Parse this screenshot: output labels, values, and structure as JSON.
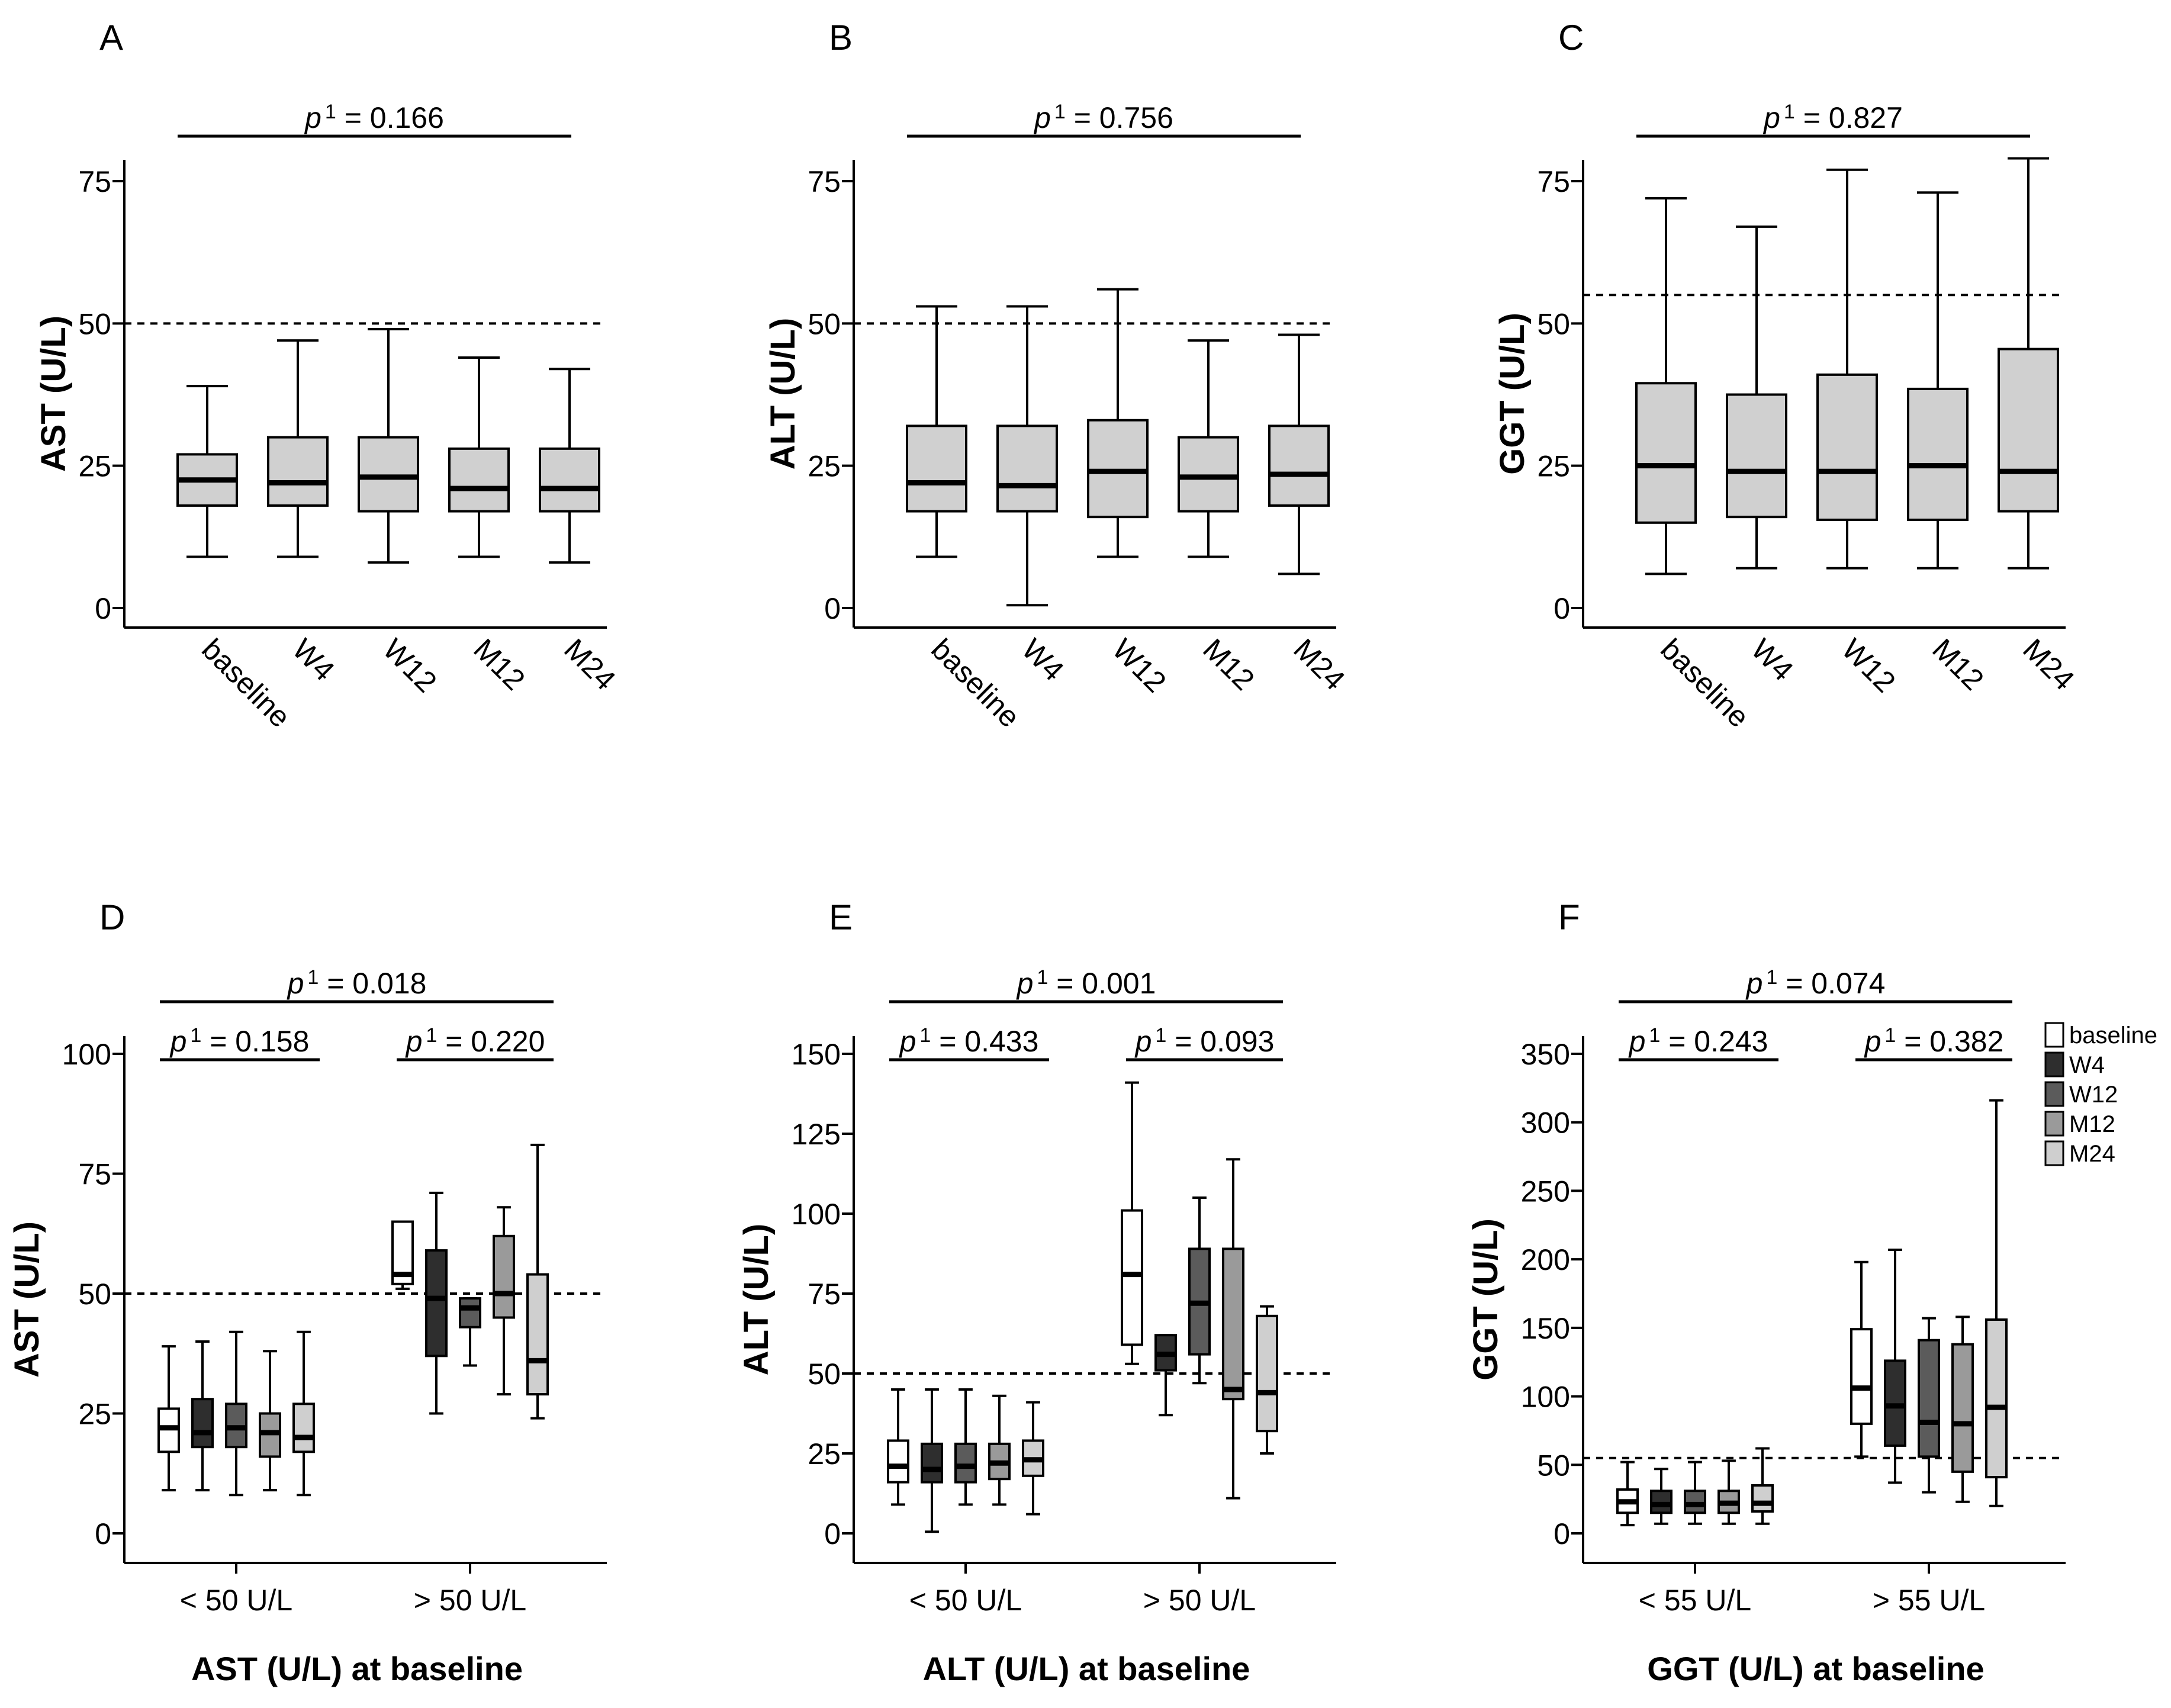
{
  "chart_data": [
    {
      "panel": "A",
      "type": "boxplot",
      "ylabel": "AST (U/L)",
      "xlabel": "",
      "ylim": [
        0,
        75
      ],
      "yticks": [
        "0",
        "25",
        "50",
        "75"
      ],
      "reference_line": 50,
      "p_labels": [
        {
          "p": "p",
          "sup": "1",
          "value": " = 0.166"
        }
      ],
      "categories": [
        "baseline",
        "W4",
        "W12",
        "M12",
        "M24"
      ],
      "series": [
        {
          "name": "baseline",
          "min": 9,
          "q1": 18,
          "median": 22.5,
          "q3": 27,
          "max": 39
        },
        {
          "name": "W4",
          "min": 9,
          "q1": 18,
          "median": 22,
          "q3": 30,
          "max": 47
        },
        {
          "name": "W12",
          "min": 8,
          "q1": 17,
          "median": 23,
          "q3": 30,
          "max": 49
        },
        {
          "name": "M12",
          "min": 9,
          "q1": 17,
          "median": 21,
          "q3": 28,
          "max": 44
        },
        {
          "name": "M24",
          "min": 8,
          "q1": 17,
          "median": 21,
          "q3": 28,
          "max": 42
        }
      ]
    },
    {
      "panel": "B",
      "type": "boxplot",
      "ylabel": "ALT (U/L)",
      "xlabel": "",
      "ylim": [
        0,
        75
      ],
      "yticks": [
        "0",
        "25",
        "50",
        "75"
      ],
      "reference_line": 50,
      "p_labels": [
        {
          "p": "p",
          "sup": "1",
          "value": " = 0.756"
        }
      ],
      "categories": [
        "baseline",
        "W4",
        "W12",
        "M12",
        "M24"
      ],
      "series": [
        {
          "name": "baseline",
          "min": 9,
          "q1": 17,
          "median": 22,
          "q3": 32,
          "max": 53
        },
        {
          "name": "W4",
          "min": 0.5,
          "q1": 17,
          "median": 21.5,
          "q3": 32,
          "max": 53
        },
        {
          "name": "W12",
          "min": 9,
          "q1": 16,
          "median": 24,
          "q3": 33,
          "max": 56
        },
        {
          "name": "M12",
          "min": 9,
          "q1": 17,
          "median": 23,
          "q3": 30,
          "max": 47
        },
        {
          "name": "M24",
          "min": 6,
          "q1": 18,
          "median": 23.5,
          "q3": 32,
          "max": 48
        }
      ]
    },
    {
      "panel": "C",
      "type": "boxplot",
      "ylabel": "GGT (U/L)",
      "xlabel": "",
      "ylim": [
        0,
        75
      ],
      "yticks": [
        "0",
        "25",
        "50",
        "75"
      ],
      "reference_line": 55,
      "p_labels": [
        {
          "p": "p",
          "sup": "1",
          "value": " = 0.827"
        }
      ],
      "categories": [
        "baseline",
        "W4",
        "W12",
        "M12",
        "M24"
      ],
      "series": [
        {
          "name": "baseline",
          "min": 6,
          "q1": 15,
          "median": 25,
          "q3": 39.5,
          "max": 72
        },
        {
          "name": "W4",
          "min": 7,
          "q1": 16,
          "median": 24,
          "q3": 37.5,
          "max": 67
        },
        {
          "name": "W12",
          "min": 7,
          "q1": 15.5,
          "median": 24,
          "q3": 41,
          "max": 77
        },
        {
          "name": "M12",
          "min": 7,
          "q1": 15.5,
          "median": 25,
          "q3": 38.5,
          "max": 73
        },
        {
          "name": "M24",
          "min": 7,
          "q1": 17,
          "median": 24,
          "q3": 45.5,
          "max": 79
        }
      ]
    },
    {
      "panel": "D",
      "type": "grouped-boxplot",
      "ylabel": "AST (U/L)",
      "xlabel": "AST (U/L) at baseline",
      "ylim": [
        0,
        100
      ],
      "yticks": [
        "0",
        "25",
        "50",
        "75",
        "100"
      ],
      "reference_line": 50,
      "p_labels": [
        {
          "p": "p",
          "sup": "1",
          "value": " = 0.018"
        },
        {
          "p": "p",
          "sup": "1",
          "value": " = 0.158"
        },
        {
          "p": "p",
          "sup": "1",
          "value": " = 0.220"
        }
      ],
      "groups": [
        "< 50 U/L",
        "> 50 U/L"
      ],
      "series_names": [
        "baseline",
        "W4",
        "W12",
        "M12",
        "M24"
      ],
      "boxes": [
        [
          {
            "min": 9,
            "q1": 17,
            "median": 22,
            "q3": 26,
            "max": 39
          },
          {
            "min": 9,
            "q1": 18,
            "median": 21,
            "q3": 28,
            "max": 40
          },
          {
            "min": 8,
            "q1": 18,
            "median": 22,
            "q3": 27,
            "max": 42
          },
          {
            "min": 9,
            "q1": 16,
            "median": 21,
            "q3": 25,
            "max": 38
          },
          {
            "min": 8,
            "q1": 17,
            "median": 20,
            "q3": 27,
            "max": 42
          }
        ],
        [
          {
            "min": 51,
            "q1": 52,
            "median": 54,
            "q3": 65,
            "max": 65
          },
          {
            "min": 25,
            "q1": 37,
            "median": 49,
            "q3": 59,
            "max": 71
          },
          {
            "min": 35,
            "q1": 43,
            "median": 47,
            "q3": 49,
            "max": 49
          },
          {
            "min": 29,
            "q1": 45,
            "median": 50,
            "q3": 62,
            "max": 68
          },
          {
            "min": 24,
            "q1": 29,
            "median": 36,
            "q3": 54,
            "max": 81
          }
        ]
      ]
    },
    {
      "panel": "E",
      "type": "grouped-boxplot",
      "ylabel": "ALT (U/L)",
      "xlabel": "ALT (U/L) at baseline",
      "ylim": [
        0,
        150
      ],
      "yticks": [
        "0",
        "25",
        "50",
        "75",
        "100",
        "125",
        "150"
      ],
      "reference_line": 50,
      "p_labels": [
        {
          "p": "p",
          "sup": "1",
          "value": " = 0.001"
        },
        {
          "p": "p",
          "sup": "1",
          "value": " = 0.433"
        },
        {
          "p": "p",
          "sup": "1",
          "value": " = 0.093"
        }
      ],
      "groups": [
        "< 50 U/L",
        "> 50 U/L"
      ],
      "series_names": [
        "baseline",
        "W4",
        "W12",
        "M12",
        "M24"
      ],
      "boxes": [
        [
          {
            "min": 9,
            "q1": 16,
            "median": 21,
            "q3": 29,
            "max": 45
          },
          {
            "min": 0.5,
            "q1": 16,
            "median": 20,
            "q3": 28,
            "max": 45
          },
          {
            "min": 9,
            "q1": 16,
            "median": 21,
            "q3": 28,
            "max": 45
          },
          {
            "min": 9,
            "q1": 17,
            "median": 22,
            "q3": 28,
            "max": 43
          },
          {
            "min": 6,
            "q1": 18,
            "median": 23,
            "q3": 29,
            "max": 41
          }
        ],
        [
          {
            "min": 53,
            "q1": 59,
            "median": 81,
            "q3": 101,
            "max": 141
          },
          {
            "min": 37,
            "q1": 51,
            "median": 56,
            "q3": 62,
            "max": 62
          },
          {
            "min": 47,
            "q1": 56,
            "median": 72,
            "q3": 89,
            "max": 105
          },
          {
            "min": 11,
            "q1": 42,
            "median": 45,
            "q3": 89,
            "max": 117
          },
          {
            "min": 25,
            "q1": 32,
            "median": 44,
            "q3": 68,
            "max": 71
          }
        ]
      ]
    },
    {
      "panel": "F",
      "type": "grouped-boxplot",
      "ylabel": "GGT (U/L)",
      "xlabel": "GGT (U/L) at baseline",
      "ylim": [
        0,
        350
      ],
      "yticks": [
        "0",
        "50",
        "100",
        "150",
        "200",
        "250",
        "300",
        "350"
      ],
      "reference_line": 55,
      "p_labels": [
        {
          "p": "p",
          "sup": "1",
          "value": " = 0.074"
        },
        {
          "p": "p",
          "sup": "1",
          "value": " = 0.243"
        },
        {
          "p": "p",
          "sup": "1",
          "value": " = 0.382"
        }
      ],
      "groups": [
        "< 55 U/L",
        "> 55 U/L"
      ],
      "series_names": [
        "baseline",
        "W4",
        "W12",
        "M12",
        "M24"
      ],
      "boxes": [
        [
          {
            "min": 6,
            "q1": 15,
            "median": 23,
            "q3": 32,
            "max": 52
          },
          {
            "min": 7,
            "q1": 15,
            "median": 21,
            "q3": 31,
            "max": 47
          },
          {
            "min": 7,
            "q1": 15,
            "median": 21,
            "q3": 31,
            "max": 52
          },
          {
            "min": 7,
            "q1": 15,
            "median": 22,
            "q3": 31,
            "max": 53
          },
          {
            "min": 7,
            "q1": 16,
            "median": 22,
            "q3": 35,
            "max": 62
          }
        ],
        [
          {
            "min": 56,
            "q1": 80,
            "median": 106,
            "q3": 149,
            "max": 198
          },
          {
            "min": 37,
            "q1": 64,
            "median": 93,
            "q3": 126,
            "max": 207
          },
          {
            "min": 30,
            "q1": 56,
            "median": 81,
            "q3": 141,
            "max": 157
          },
          {
            "min": 23,
            "q1": 45,
            "median": 80,
            "q3": 138,
            "max": 158
          },
          {
            "min": 20,
            "q1": 41,
            "median": 92,
            "q3": 156,
            "max": 316
          }
        ]
      ]
    }
  ],
  "legend": {
    "entries": [
      "baseline",
      "W4",
      "W12",
      "M12",
      "M24"
    ],
    "colors": [
      "#ffffff",
      "#2e2e2e",
      "#5b5b5b",
      "#9a9a9a",
      "#cfcfcf"
    ]
  },
  "colors": {
    "box_fill_top": "#d0d0d0",
    "line": "#000000"
  }
}
